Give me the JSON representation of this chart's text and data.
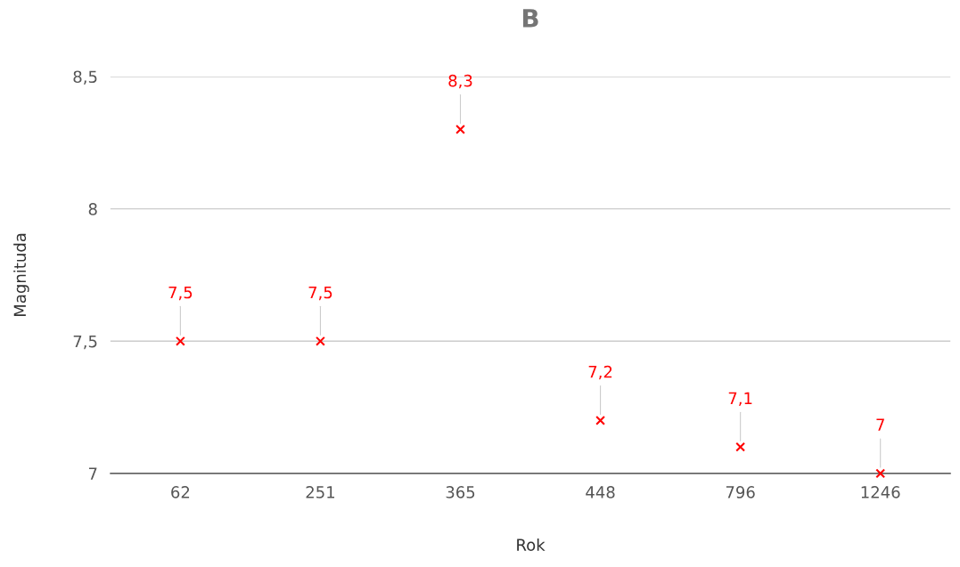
{
  "chart_data": {
    "type": "scatter",
    "title": "B",
    "xlabel": "Rok",
    "ylabel": "Magnituda",
    "categories": [
      "62",
      "251",
      "365",
      "448",
      "796",
      "1246"
    ],
    "series": [
      {
        "color": "#ff0000",
        "values": [
          7.5,
          7.5,
          8.3,
          7.2,
          7.1,
          7.0
        ],
        "value_labels": [
          "7,5",
          "7,5",
          "8,3",
          "7,2",
          "7,1",
          "7"
        ]
      }
    ],
    "ylim": [
      7,
      8.5
    ],
    "yticks": [
      7,
      {
        "value": 7.5,
        "label": "7,5"
      },
      8,
      {
        "value": 8.5,
        "label": "8,5"
      }
    ],
    "grid": "y",
    "marker": "cross",
    "legend": false
  }
}
